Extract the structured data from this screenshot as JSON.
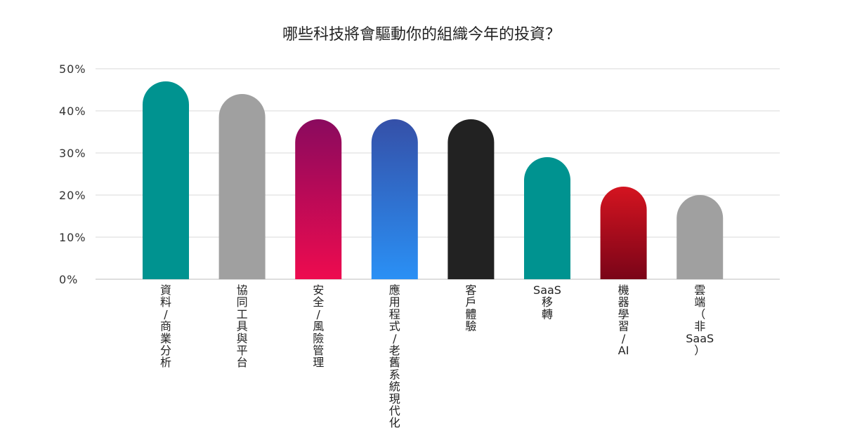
{
  "chart_data": {
    "type": "bar",
    "title": "哪些科技將會驅動你的組織今年的投資？",
    "xlabel": "",
    "ylabel": "",
    "ylim": [
      0,
      50
    ],
    "yticks": [
      0,
      10,
      20,
      30,
      40,
      50
    ],
    "ytick_labels": [
      "0%",
      "10%",
      "20%",
      "30%",
      "40%",
      "50%"
    ],
    "grid": true,
    "legend": "none",
    "categories": [
      "資料/商業分析",
      "協同工具與平台",
      "安全/風險管理",
      "應用程式/老舊系統現代化",
      "客戶體驗",
      "SaaS移轉",
      "機器學習/AI",
      "雲端（非SaaS）"
    ],
    "category_lines": [
      [
        "資",
        "料",
        "/",
        "商",
        "業",
        "分",
        "析"
      ],
      [
        "協",
        "同",
        "工",
        "具",
        "與",
        "平",
        "台"
      ],
      [
        "安",
        "全",
        "/",
        "風",
        "險",
        "管",
        "理"
      ],
      [
        "應",
        "用",
        "程",
        "式",
        "/",
        "老",
        "舊",
        "系",
        "統",
        "現",
        "代",
        "化"
      ],
      [
        "客",
        "戶",
        "體",
        "驗"
      ],
      [
        "SaaS",
        "移",
        "轉"
      ],
      [
        "機",
        "器",
        "學",
        "習",
        "/",
        "AI"
      ],
      [
        "雲",
        "端",
        "（",
        "非",
        "SaaS",
        "）"
      ]
    ],
    "values": [
      47,
      44,
      38,
      38,
      38,
      29,
      22,
      20
    ],
    "bar_fills": [
      {
        "type": "solid",
        "color": "#009390"
      },
      {
        "type": "solid",
        "color": "#A0A0A0"
      },
      {
        "type": "gradient",
        "top": "#8A0A5E",
        "bottom": "#EE0B4F"
      },
      {
        "type": "gradient",
        "top": "#3550A8",
        "bottom": "#2A90F5"
      },
      {
        "type": "solid",
        "color": "#222222"
      },
      {
        "type": "solid",
        "color": "#009390"
      },
      {
        "type": "gradient",
        "top": "#D41420",
        "bottom": "#7A0418"
      },
      {
        "type": "solid",
        "color": "#A0A0A0"
      }
    ]
  }
}
